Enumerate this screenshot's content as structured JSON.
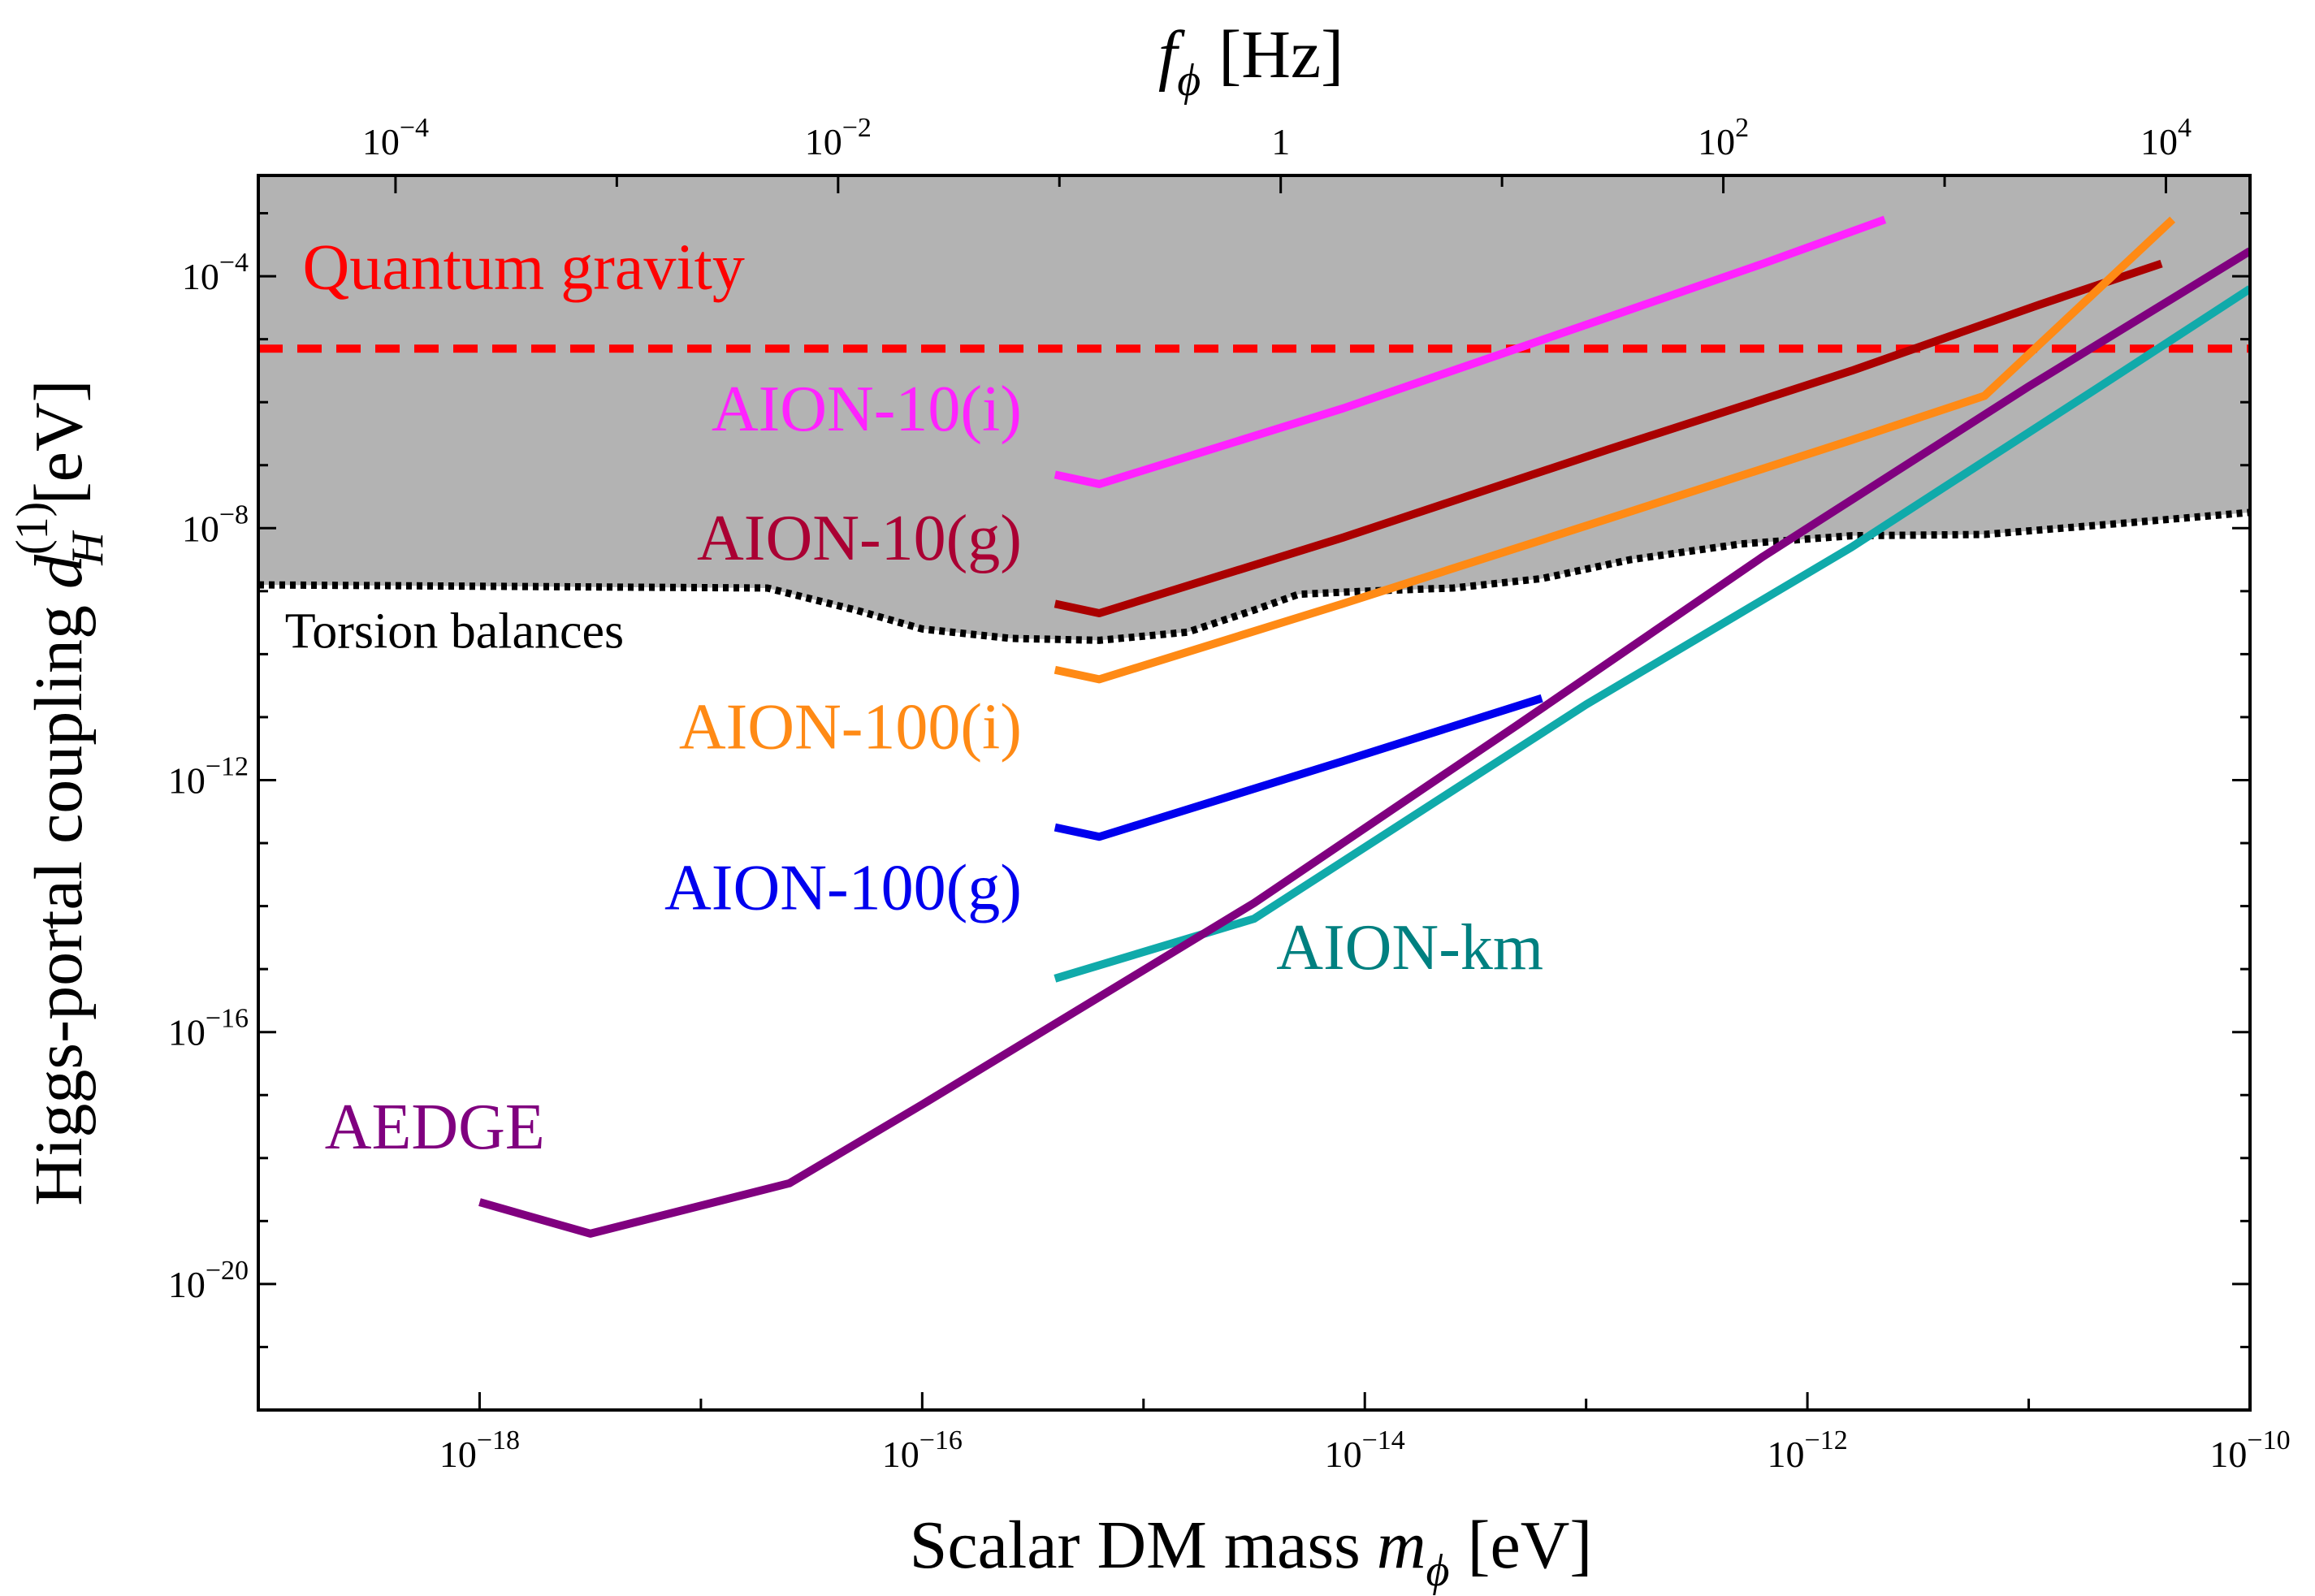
{
  "chart_data": {
    "type": "line",
    "title": "",
    "xlabel": "Scalar DM mass",
    "xlabel_symbol": "m",
    "xlabel_sub": "ϕ",
    "xlabel_unit": "[eV]",
    "ylabel": "Higgs-portal coupling",
    "ylabel_symbol": "d",
    "ylabel_sub": "H",
    "ylabel_sup": "(1)",
    "ylabel_unit": "[eV]",
    "top_xlabel_symbol": "f",
    "top_xlabel_sub": "ϕ",
    "top_xlabel_unit": "[Hz]",
    "xscale": "log",
    "yscale": "log",
    "xlim_log10": [
      -19,
      -10
    ],
    "ylim_log10": [
      -22,
      -2.4
    ],
    "top_xlim_log10": [
      -4.62,
      4.38
    ],
    "x_ticks": [
      {
        "exp": -18,
        "base": "10",
        "power": "−18"
      },
      {
        "exp": -16,
        "base": "10",
        "power": "−16"
      },
      {
        "exp": -14,
        "base": "10",
        "power": "−14"
      },
      {
        "exp": -12,
        "base": "10",
        "power": "−12"
      },
      {
        "exp": -10,
        "base": "10",
        "power": "−10"
      }
    ],
    "y_ticks": [
      {
        "exp": -4,
        "base": "10",
        "power": "−4"
      },
      {
        "exp": -8,
        "base": "10",
        "power": "−8"
      },
      {
        "exp": -12,
        "base": "10",
        "power": "−12"
      },
      {
        "exp": -16,
        "base": "10",
        "power": "−16"
      },
      {
        "exp": -20,
        "base": "10",
        "power": "−20"
      }
    ],
    "top_ticks": [
      {
        "exp": -4,
        "base": "10",
        "power": "−4"
      },
      {
        "exp": -2,
        "base": "10",
        "power": "−2"
      },
      {
        "exp": 0,
        "base": "1",
        "power": ""
      },
      {
        "exp": 2,
        "base": "10",
        "power": "2"
      },
      {
        "exp": 4,
        "base": "10",
        "power": "4"
      }
    ],
    "excluded_region": {
      "name": "Torsion balances",
      "fill": "#b3b3b3",
      "boundary": [
        [
          -19,
          -8.9
        ],
        [
          -16.7,
          -8.95
        ],
        [
          -16.3,
          -9.3
        ],
        [
          -16.0,
          -9.6
        ],
        [
          -15.6,
          -9.75
        ],
        [
          -15.2,
          -9.78
        ],
        [
          -14.8,
          -9.65
        ],
        [
          -14.5,
          -9.3
        ],
        [
          -14.3,
          -9.05
        ],
        [
          -14.0,
          -9.0
        ],
        [
          -13.6,
          -8.95
        ],
        [
          -13.2,
          -8.8
        ],
        [
          -12.8,
          -8.5
        ],
        [
          -12.3,
          -8.25
        ],
        [
          -11.8,
          -8.12
        ],
        [
          -11.2,
          -8.1
        ],
        [
          -10.5,
          -7.9
        ],
        [
          -10.0,
          -7.75
        ]
      ]
    },
    "reference_line": {
      "name": "Quantum gravity",
      "y_log10": -5.15,
      "color": "#ff0000"
    },
    "series": [
      {
        "name": "AION-10(i)",
        "color": "#ff22ff",
        "points": [
          [
            -15.4,
            -7.15
          ],
          [
            -15.2,
            -7.3
          ],
          [
            -14.1,
            -6.1
          ],
          [
            -12.9,
            -4.65
          ],
          [
            -12.2,
            -3.8
          ],
          [
            -11.65,
            -3.1
          ]
        ]
      },
      {
        "name": "AION-10(g)",
        "color": "#aa0000",
        "points": [
          [
            -15.4,
            -9.2
          ],
          [
            -15.2,
            -9.35
          ],
          [
            -14.1,
            -8.15
          ],
          [
            -12.9,
            -6.75
          ],
          [
            -11.8,
            -5.5
          ],
          [
            -10.95,
            -4.45
          ],
          [
            -10.4,
            -3.8
          ]
        ]
      },
      {
        "name": "AION-100(i)",
        "color": "#ff8a15",
        "points": [
          [
            -15.4,
            -10.25
          ],
          [
            -15.2,
            -10.4
          ],
          [
            -14.1,
            -9.2
          ],
          [
            -12.9,
            -7.85
          ],
          [
            -11.8,
            -6.6
          ],
          [
            -11.2,
            -5.9
          ],
          [
            -10.35,
            -3.1
          ]
        ]
      },
      {
        "name": "AION-100(g)",
        "color": "#0000ee",
        "points": [
          [
            -15.4,
            -12.75
          ],
          [
            -15.2,
            -12.9
          ],
          [
            -14.1,
            -11.7
          ],
          [
            -13.2,
            -10.7
          ]
        ]
      },
      {
        "name": "AION-km",
        "color": "#10aaaa",
        "points": [
          [
            -15.4,
            -15.15
          ],
          [
            -14.5,
            -14.2
          ],
          [
            -13.0,
            -10.8
          ],
          [
            -11.8,
            -8.3
          ],
          [
            -10.7,
            -5.8
          ],
          [
            -10.0,
            -4.2
          ]
        ]
      },
      {
        "name": "AEDGE",
        "color": "#80007f",
        "points": [
          [
            -18.0,
            -18.7
          ],
          [
            -17.5,
            -19.2
          ],
          [
            -16.6,
            -18.4
          ],
          [
            -16.0,
            -17.15
          ],
          [
            -14.5,
            -13.95
          ],
          [
            -13.3,
            -11.1
          ],
          [
            -12.2,
            -8.45
          ],
          [
            -11.0,
            -5.75
          ],
          [
            -10.0,
            -3.6
          ]
        ]
      }
    ],
    "labels": [
      {
        "text": "Quantum gravity",
        "color": "#ff0000",
        "at": [
          -18.8,
          -4.2
        ]
      },
      {
        "text": "AION-10(i)",
        "color": "#ff22ff",
        "at": [
          -15.55,
          -6.45
        ]
      },
      {
        "text": "AION-10(g)",
        "color": "#aa0033",
        "at": [
          -15.55,
          -8.5
        ]
      },
      {
        "text": "Torsion balances",
        "color": "#000000",
        "at": [
          -18.88,
          -9.9
        ]
      },
      {
        "text": "AION-100(i)",
        "color": "#ff8a15",
        "at": [
          -15.55,
          -11.5
        ]
      },
      {
        "text": "AION-100(g)",
        "color": "#0000ee",
        "at": [
          -15.55,
          -14.05
        ]
      },
      {
        "text": "AION-km",
        "color": "#008080",
        "at": [
          -14.4,
          -15.0
        ]
      },
      {
        "text": "AEDGE",
        "color": "#80007f",
        "at": [
          -18.7,
          -17.85
        ]
      }
    ]
  }
}
